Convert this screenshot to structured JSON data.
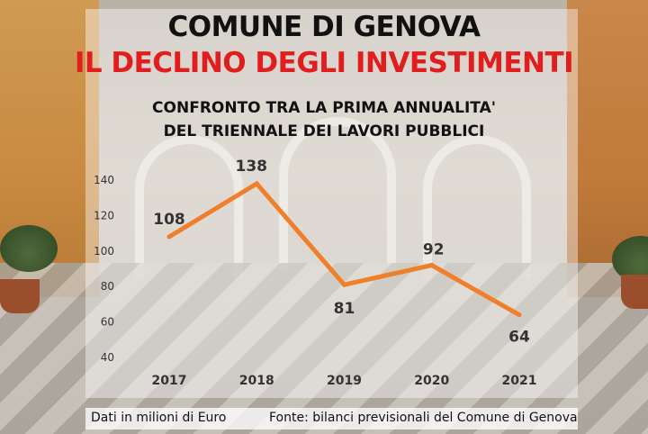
{
  "header": {
    "title": "COMUNE DI GENOVA",
    "headline": "IL DECLINO DEGLI INVESTIMENTI",
    "subtitle_line1": "CONFRONTO TRA LA PRIMA ANNUALITA'",
    "subtitle_line2": "DEL TRIENNALE DEI LAVORI PUBBLICI"
  },
  "footer": {
    "units_note": "Dati in milioni di Euro",
    "source": "Fonte: bilanci previsionali del Comune di Genova"
  },
  "colors": {
    "line": "#f07f2c",
    "headline": "#e11d1d"
  },
  "chart_data": {
    "type": "line",
    "title": "CONFRONTO TRA LA PRIMA ANNUALITA' DEL TRIENNALE DEI LAVORI PUBBLICI",
    "categories": [
      "2017",
      "2018",
      "2019",
      "2020",
      "2021"
    ],
    "values": [
      108,
      138,
      81,
      92,
      64
    ],
    "data_labels": [
      "108",
      "138",
      "81",
      "92",
      "64"
    ],
    "y_ticks": [
      "40",
      "60",
      "80",
      "100",
      "120",
      "140"
    ],
    "ylim": [
      40,
      140
    ],
    "grid": false,
    "legend": "none"
  }
}
